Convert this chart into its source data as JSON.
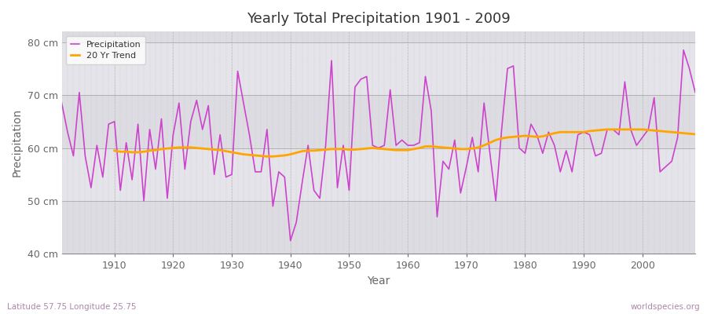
{
  "title": "Yearly Total Precipitation 1901 - 2009",
  "xlabel": "Year",
  "ylabel": "Precipitation",
  "lat_lon_label": "Latitude 57.75 Longitude 25.75",
  "watermark": "worldspecies.org",
  "ylim": [
    40,
    82
  ],
  "yticks": [
    40,
    50,
    60,
    70,
    80
  ],
  "ytick_labels": [
    "40 cm",
    "50 cm",
    "60 cm",
    "70 cm",
    "80 cm"
  ],
  "precip_color": "#CC44CC",
  "trend_color": "#FFA500",
  "bg_color": "#FFFFFF",
  "plot_bg_color": "#E8E8EC",
  "band_color_light": "#DCDCE4",
  "band_color_dark": "#E8E8EC",
  "grid_color": "#CCCCCC",
  "years": [
    1901,
    1902,
    1903,
    1904,
    1905,
    1906,
    1907,
    1908,
    1909,
    1910,
    1911,
    1912,
    1913,
    1914,
    1915,
    1916,
    1917,
    1918,
    1919,
    1920,
    1921,
    1922,
    1923,
    1924,
    1925,
    1926,
    1927,
    1928,
    1929,
    1930,
    1931,
    1932,
    1933,
    1934,
    1935,
    1936,
    1937,
    1938,
    1939,
    1940,
    1941,
    1942,
    1943,
    1944,
    1945,
    1946,
    1947,
    1948,
    1949,
    1950,
    1951,
    1952,
    1953,
    1954,
    1955,
    1956,
    1957,
    1958,
    1959,
    1960,
    1961,
    1962,
    1963,
    1964,
    1965,
    1966,
    1967,
    1968,
    1969,
    1970,
    1971,
    1972,
    1973,
    1974,
    1975,
    1976,
    1977,
    1978,
    1979,
    1980,
    1981,
    1982,
    1983,
    1984,
    1985,
    1986,
    1987,
    1988,
    1989,
    1990,
    1991,
    1992,
    1993,
    1994,
    1995,
    1996,
    1997,
    1998,
    1999,
    2000,
    2001,
    2002,
    2003,
    2004,
    2005,
    2006,
    2007,
    2008,
    2009
  ],
  "precipitation": [
    68.5,
    63.0,
    58.5,
    70.5,
    58.5,
    52.5,
    60.5,
    54.5,
    64.5,
    65.0,
    52.0,
    61.0,
    54.0,
    64.5,
    50.0,
    63.5,
    56.0,
    65.5,
    50.5,
    62.5,
    68.5,
    56.0,
    65.0,
    69.0,
    63.5,
    68.0,
    55.0,
    62.5,
    54.5,
    55.0,
    74.5,
    68.5,
    62.5,
    55.5,
    55.5,
    63.5,
    49.0,
    55.5,
    54.5,
    42.5,
    46.0,
    53.5,
    60.5,
    52.0,
    50.5,
    60.5,
    76.5,
    52.5,
    60.5,
    52.0,
    71.5,
    73.0,
    73.5,
    60.5,
    60.0,
    60.5,
    71.0,
    60.5,
    61.5,
    60.5,
    60.5,
    61.0,
    73.5,
    67.0,
    47.0,
    57.5,
    56.0,
    61.5,
    51.5,
    56.5,
    62.0,
    55.5,
    68.5,
    59.0,
    50.0,
    63.5,
    75.0,
    75.5,
    60.0,
    59.0,
    64.5,
    62.5,
    59.0,
    63.0,
    60.5,
    55.5,
    59.5,
    55.5,
    62.5,
    63.0,
    62.5,
    58.5,
    59.0,
    63.5,
    63.5,
    62.5,
    72.5,
    63.5,
    60.5,
    62.0,
    63.5,
    69.5,
    55.5,
    56.5,
    57.5,
    62.0,
    78.5,
    75.0,
    70.5
  ],
  "trend_years": [
    1910,
    1911,
    1912,
    1913,
    1914,
    1915,
    1916,
    1917,
    1918,
    1919,
    1920,
    1921,
    1922,
    1923,
    1924,
    1925,
    1926,
    1927,
    1928,
    1929,
    1930,
    1931,
    1932,
    1933,
    1934,
    1935,
    1936,
    1937,
    1938,
    1939,
    1940,
    1941,
    1942,
    1943,
    1944,
    1945,
    1946,
    1947,
    1948,
    1949,
    1950,
    1951,
    1952,
    1953,
    1954,
    1955,
    1956,
    1957,
    1958,
    1959,
    1960,
    1961,
    1962,
    1963,
    1964,
    1965,
    1966,
    1967,
    1968,
    1969,
    1970,
    1971,
    1972,
    1973,
    1974,
    1975,
    1976,
    1977,
    1978,
    1979,
    1980,
    1981,
    1982,
    1983,
    1984,
    1985,
    1986,
    1987,
    1988,
    1989,
    1990,
    1991,
    1992,
    1993,
    1994,
    1995,
    1996,
    1997,
    1998,
    1999,
    2000,
    2001,
    2002,
    2003,
    2004,
    2005,
    2006,
    2007,
    2008,
    2009
  ],
  "trend": [
    59.5,
    59.3,
    59.3,
    59.2,
    59.2,
    59.3,
    59.5,
    59.6,
    59.8,
    59.9,
    60.0,
    60.1,
    60.1,
    60.1,
    60.0,
    59.9,
    59.8,
    59.7,
    59.6,
    59.4,
    59.2,
    59.0,
    58.8,
    58.7,
    58.6,
    58.5,
    58.4,
    58.4,
    58.5,
    58.6,
    58.8,
    59.1,
    59.4,
    59.5,
    59.5,
    59.6,
    59.7,
    59.8,
    59.8,
    59.8,
    59.7,
    59.7,
    59.8,
    59.9,
    60.0,
    59.9,
    59.8,
    59.7,
    59.6,
    59.6,
    59.6,
    59.8,
    60.0,
    60.3,
    60.3,
    60.2,
    60.1,
    60.0,
    59.9,
    59.8,
    59.8,
    59.9,
    60.1,
    60.5,
    61.0,
    61.5,
    61.8,
    62.0,
    62.1,
    62.2,
    62.3,
    62.2,
    62.1,
    62.2,
    62.5,
    62.8,
    63.0,
    63.0,
    63.0,
    63.0,
    63.0,
    63.2,
    63.3,
    63.4,
    63.5,
    63.5,
    63.5,
    63.5,
    63.5,
    63.5,
    63.5,
    63.4,
    63.3,
    63.2,
    63.1,
    63.0,
    62.9,
    62.8,
    62.7,
    62.6
  ]
}
